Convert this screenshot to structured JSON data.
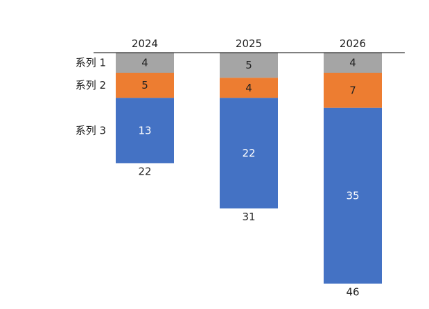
{
  "chart_data": {
    "type": "bar",
    "orientation": "vertical-stacked-downward",
    "categories": [
      "2024",
      "2025",
      "2026"
    ],
    "series": [
      {
        "name": "系列 1",
        "values": [
          4,
          5,
          4
        ],
        "color": "#a5a5a5",
        "label_color": "#222222"
      },
      {
        "name": "系列 2",
        "values": [
          5,
          4,
          7
        ],
        "color": "#ed7d31",
        "label_color": "#222222"
      },
      {
        "name": "系列 3",
        "values": [
          13,
          22,
          35
        ],
        "color": "#4472c4",
        "label_color": "#ffffff"
      }
    ],
    "totals": [
      "22",
      "31",
      "46"
    ],
    "axis": {
      "color": "#000000",
      "ylim": [
        0,
        46
      ]
    },
    "grid": false,
    "legend": "none",
    "title": ""
  }
}
